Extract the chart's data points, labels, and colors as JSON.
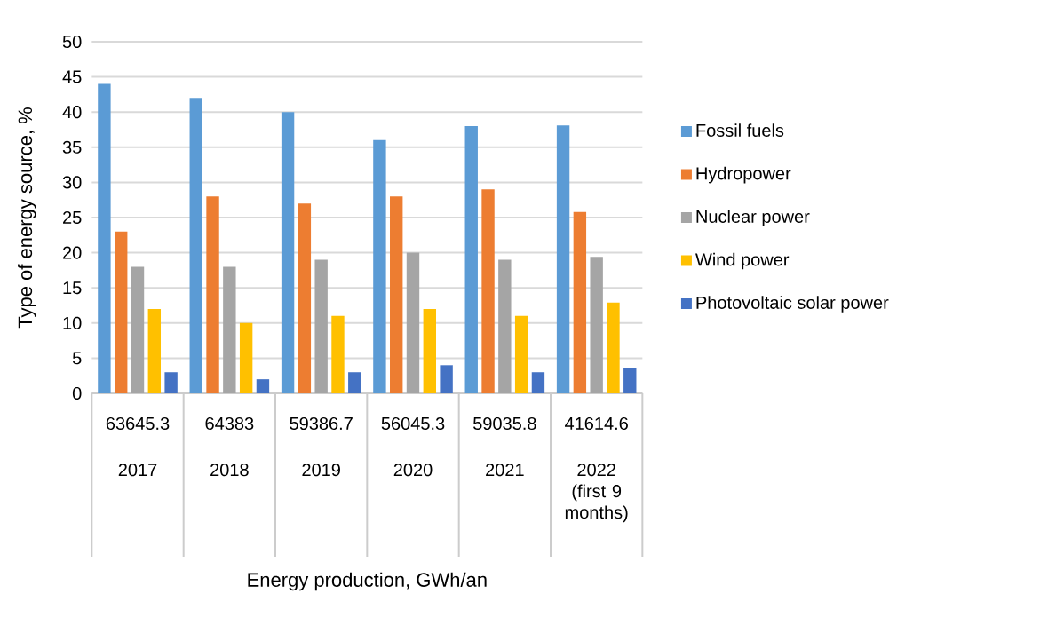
{
  "chart_data": {
    "type": "bar",
    "categories": [
      "2017",
      "2018",
      "2019",
      "2020",
      "2021",
      "2022 (first 9 months)"
    ],
    "xlabel": "Energy production, GWh/an",
    "ylabel": "Type of energy source, %",
    "series": [
      {
        "name": "Fossil fuels",
        "color": "#5b9bd5",
        "values": [
          44,
          42,
          40,
          36,
          38,
          38.1
        ]
      },
      {
        "name": "Hydropower",
        "color": "#ed7d31",
        "values": [
          23,
          28,
          27,
          28,
          29,
          25.8
        ]
      },
      {
        "name": "Nuclear power",
        "color": "#a5a5a5",
        "values": [
          18,
          18,
          19,
          20,
          19,
          19.4
        ]
      },
      {
        "name": "Wind power",
        "color": "#ffc000",
        "values": [
          12,
          10,
          11,
          12,
          11,
          12.9
        ]
      },
      {
        "name": "Photovoltaic solar power",
        "color": "#4472c4",
        "values": [
          3,
          2,
          3,
          4,
          3,
          3.6
        ]
      }
    ],
    "annotations": [
      "63645.3",
      "64383",
      "59386.7",
      "56045.3",
      "59035.8",
      "41614.6"
    ],
    "ylim": [
      0,
      50
    ],
    "yticks": [
      0,
      5,
      10,
      15,
      20,
      25,
      30,
      35,
      40,
      45,
      50
    ],
    "grid": "y",
    "legend": "right"
  }
}
